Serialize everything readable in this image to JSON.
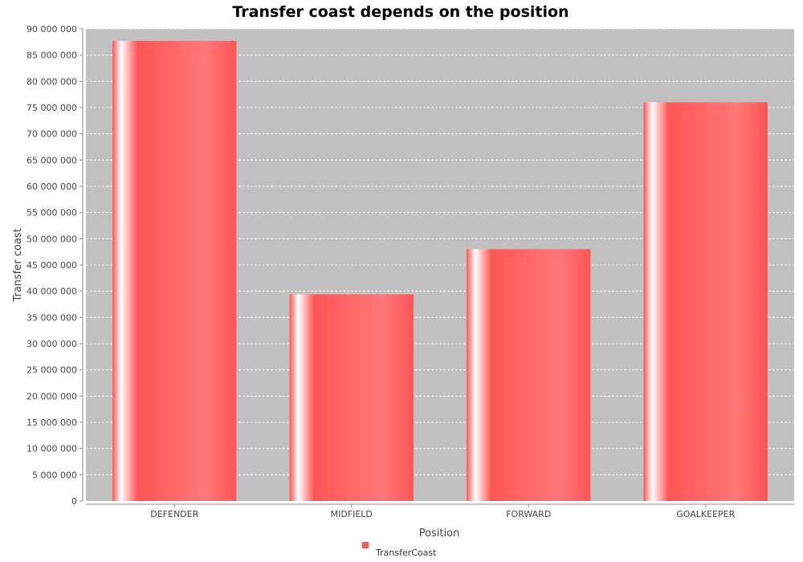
{
  "chart_data": {
    "type": "bar",
    "title": "Transfer coast depends on the position",
    "xlabel": "Position",
    "ylabel": "Transfer coast",
    "categories": [
      "DEFENDER",
      "MIDFIELD",
      "FORWARD",
      "GOALKEEPER"
    ],
    "series": [
      {
        "name": "TransferCoast",
        "values": [
          87700000,
          39400000,
          48000000,
          76000000
        ]
      }
    ],
    "ylim": [
      0,
      90000000
    ],
    "ytick_step": 5000000,
    "ytick_labels": [
      "0",
      "5 000 000",
      "10 000 000",
      "15 000 000",
      "20 000 000",
      "25 000 000",
      "30 000 000",
      "35 000 000",
      "40 000 000",
      "45 000 000",
      "50 000 000",
      "55 000 000",
      "60 000 000",
      "65 000 000",
      "70 000 000",
      "75 000 000",
      "80 000 000",
      "85 000 000",
      "90 000 000"
    ],
    "grid": true,
    "legend_position": "bottom-center",
    "colors": {
      "bar": "#ff5555",
      "plot_background": "#c0c0c0",
      "gridline": "#ffffff"
    }
  }
}
